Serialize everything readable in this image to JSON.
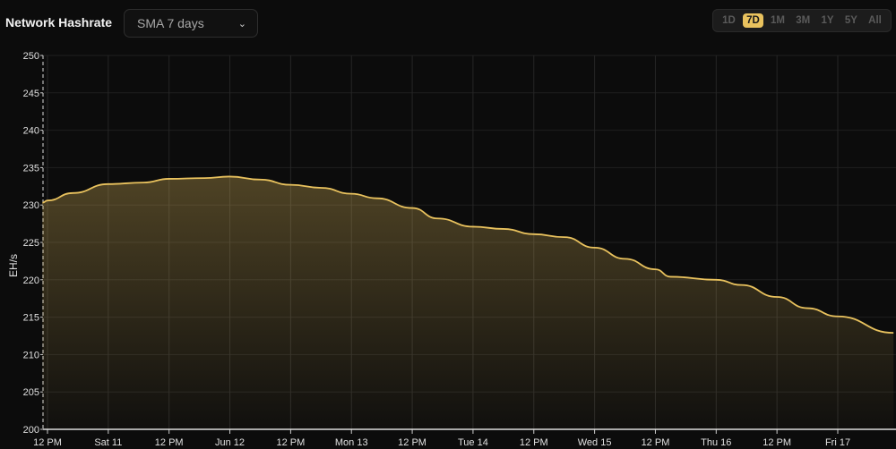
{
  "header": {
    "title": "Network Hashrate",
    "select_value": "SMA 7 days",
    "select_icon": "chevron-down-icon",
    "ranges": [
      {
        "label": "1D"
      },
      {
        "label": "7D",
        "active": true
      },
      {
        "label": "1M"
      },
      {
        "label": "3M"
      },
      {
        "label": "1Y"
      },
      {
        "label": "5Y"
      },
      {
        "label": "All"
      }
    ]
  },
  "colors": {
    "line": "#e9c25e",
    "accent": "#e9c25e",
    "background": "#0c0c0c"
  },
  "chart_data": {
    "type": "area",
    "ylabel": "EH/s",
    "ylim": [
      200,
      250
    ],
    "yticks": [
      200,
      205,
      210,
      215,
      220,
      225,
      230,
      235,
      240,
      245,
      250
    ],
    "xlim": [
      "06-10 11:00",
      "06-17 21:00"
    ],
    "xticks": [
      {
        "t": "06-10 12:00",
        "label": "12 PM"
      },
      {
        "t": "06-11 00:00",
        "label": "Sat 11"
      },
      {
        "t": "06-11 12:00",
        "label": "12 PM"
      },
      {
        "t": "06-12 00:00",
        "label": "Jun 12"
      },
      {
        "t": "06-12 12:00",
        "label": "12 PM"
      },
      {
        "t": "06-13 00:00",
        "label": "Mon 13"
      },
      {
        "t": "06-13 12:00",
        "label": "12 PM"
      },
      {
        "t": "06-14 00:00",
        "label": "Tue 14"
      },
      {
        "t": "06-14 12:00",
        "label": "12 PM"
      },
      {
        "t": "06-15 00:00",
        "label": "Wed 15"
      },
      {
        "t": "06-15 12:00",
        "label": "12 PM"
      },
      {
        "t": "06-16 00:00",
        "label": "Thu 16"
      },
      {
        "t": "06-16 12:00",
        "label": "12 PM"
      },
      {
        "t": "06-17 00:00",
        "label": "Fri 17"
      }
    ],
    "grid": true,
    "points": [
      [
        "06-10 11:00",
        230.3
      ],
      [
        "06-10 12:00",
        230.6
      ],
      [
        "06-10 17:00",
        231.6
      ],
      [
        "06-11 00:00",
        232.8
      ],
      [
        "06-11 07:00",
        233.0
      ],
      [
        "06-11 12:00",
        233.5
      ],
      [
        "06-11 19:00",
        233.6
      ],
      [
        "06-12 00:00",
        233.8
      ],
      [
        "06-12 06:00",
        233.4
      ],
      [
        "06-12 12:00",
        232.7
      ],
      [
        "06-12 18:00",
        232.3
      ],
      [
        "06-13 00:00",
        231.5
      ],
      [
        "06-13 05:00",
        230.9
      ],
      [
        "06-13 12:00",
        229.6
      ],
      [
        "06-13 17:00",
        228.2
      ],
      [
        "06-14 00:00",
        227.1
      ],
      [
        "06-14 06:00",
        226.8
      ],
      [
        "06-14 12:00",
        226.1
      ],
      [
        "06-14 18:00",
        225.7
      ],
      [
        "06-15 00:00",
        224.3
      ],
      [
        "06-15 06:00",
        222.8
      ],
      [
        "06-15 12:00",
        221.4
      ],
      [
        "06-15 15:00",
        220.4
      ],
      [
        "06-16 00:00",
        220.0
      ],
      [
        "06-16 05:00",
        219.3
      ],
      [
        "06-16 12:00",
        217.7
      ],
      [
        "06-16 18:00",
        216.2
      ],
      [
        "06-17 00:00",
        215.1
      ],
      [
        "06-17 11:00",
        212.9
      ]
    ]
  }
}
